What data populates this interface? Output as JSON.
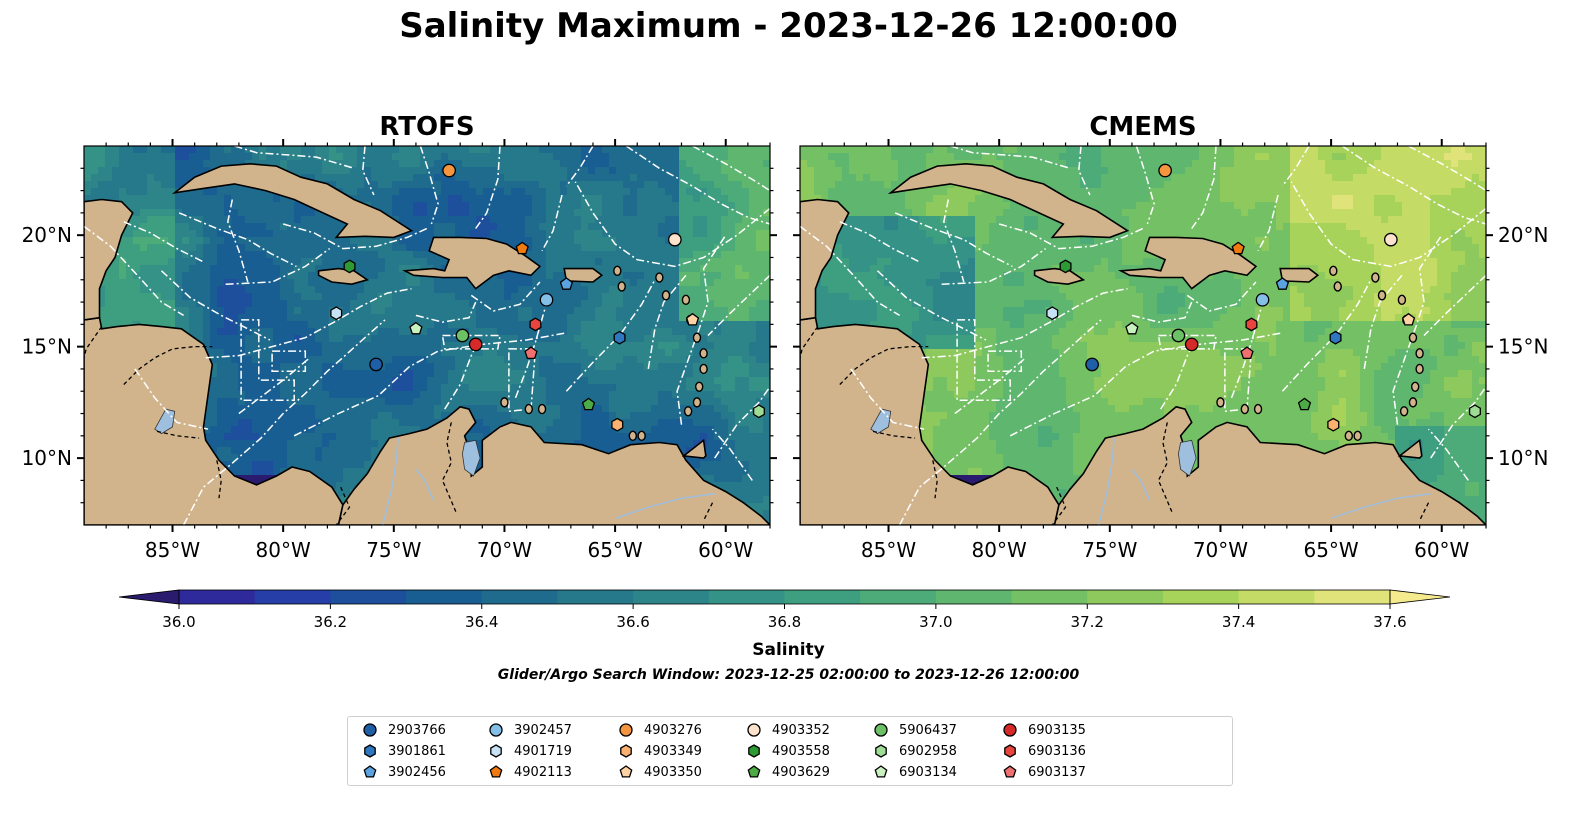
{
  "title": "Salinity Maximum - 2023-12-26 12:00:00",
  "panels": [
    {
      "id": "rtofs",
      "title": "RTOFS"
    },
    {
      "id": "cmems",
      "title": "CMEMS"
    }
  ],
  "map": {
    "lon_range": [
      -89,
      -58
    ],
    "lat_range": [
      7,
      24
    ],
    "lon_ticks": [
      "85°W",
      "80°W",
      "75°W",
      "70°W",
      "65°W",
      "60°W"
    ],
    "lat_ticks": [
      "20°N",
      "15°N",
      "10°N"
    ],
    "colors": {
      "land": "#d2b48c",
      "coastline": "#000000",
      "eez_lines": "#ffffff",
      "lakes": "#9fbfdf",
      "rivers": "#9fbfdf"
    }
  },
  "colorbar": {
    "label": "Salinity",
    "min": 36.0,
    "max": 37.6,
    "step": 0.1,
    "ticks": [
      "36.0",
      "36.2",
      "36.4",
      "36.6",
      "36.8",
      "37.0",
      "37.2",
      "37.4",
      "37.6"
    ],
    "colormap": "haline",
    "extend": "both",
    "colors": [
      "#2a1b6e",
      "#2e2a9c",
      "#253ea8",
      "#1d4f9c",
      "#195e93",
      "#1f6b8e",
      "#26788b",
      "#2d8589",
      "#359286",
      "#3e9f80",
      "#4dab79",
      "#5eb66f",
      "#74c064",
      "#8dc95c",
      "#a8d35a",
      "#c4dc66",
      "#dfe37a",
      "#f6ea8f"
    ]
  },
  "search_window": "Glider/Argo Search Window: 2023-12-25 02:00:00 to 2023-12-26 12:00:00",
  "floats": [
    {
      "id": "2903766",
      "marker": "circle",
      "color": "#1f5fa8",
      "lon": -75.8,
      "lat": 14.2
    },
    {
      "id": "3901861",
      "marker": "hexagon",
      "color": "#2f77c0",
      "lon": -64.8,
      "lat": 15.4
    },
    {
      "id": "3902456",
      "marker": "pentagon",
      "color": "#5aa3e0",
      "lon": -67.2,
      "lat": 17.8
    },
    {
      "id": "3902457",
      "marker": "circle",
      "color": "#84bfe8",
      "lon": -68.1,
      "lat": 17.1
    },
    {
      "id": "4901719",
      "marker": "hexagon",
      "color": "#c7e2f5",
      "lon": -77.6,
      "lat": 16.5
    },
    {
      "id": "4902113",
      "marker": "pentagon",
      "color": "#f07a10",
      "lon": -69.2,
      "lat": 19.4
    },
    {
      "id": "4903276",
      "marker": "circle",
      "color": "#f5953e",
      "lon": -72.5,
      "lat": 22.9
    },
    {
      "id": "4903349",
      "marker": "hexagon",
      "color": "#fbb170",
      "lon": -64.9,
      "lat": 11.5
    },
    {
      "id": "4903350",
      "marker": "pentagon",
      "color": "#fdd2a5",
      "lon": -61.5,
      "lat": 16.2
    },
    {
      "id": "4903352",
      "marker": "circle",
      "color": "#fde3cc",
      "lon": -62.3,
      "lat": 19.8
    },
    {
      "id": "4903558",
      "marker": "hexagon",
      "color": "#2e9a34",
      "lon": -77.0,
      "lat": 18.6
    },
    {
      "id": "4903629",
      "marker": "pentagon",
      "color": "#4dab45",
      "lon": -66.2,
      "lat": 12.4
    },
    {
      "id": "5906437",
      "marker": "circle",
      "color": "#6cc066",
      "lon": -71.9,
      "lat": 15.5
    },
    {
      "id": "6902958",
      "marker": "hexagon",
      "color": "#9fdc96",
      "lon": -58.5,
      "lat": 12.1
    },
    {
      "id": "6903134",
      "marker": "pentagon",
      "color": "#c9f0bf",
      "lon": -74.0,
      "lat": 15.8
    },
    {
      "id": "6903135",
      "marker": "circle",
      "color": "#d62a2a",
      "lon": -71.3,
      "lat": 15.1
    },
    {
      "id": "6903136",
      "marker": "hexagon",
      "color": "#e8453e",
      "lon": -68.6,
      "lat": 16.0
    },
    {
      "id": "6903137",
      "marker": "pentagon",
      "color": "#f07070",
      "lon": -68.8,
      "lat": 14.7
    }
  ]
}
